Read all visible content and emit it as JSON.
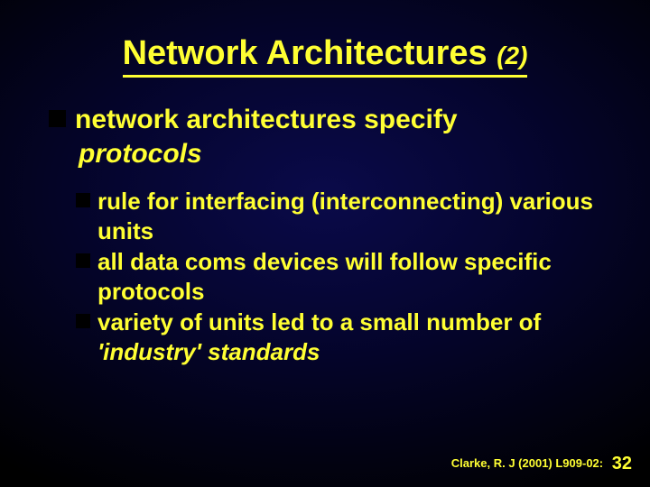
{
  "colors": {
    "text": "#ffff33",
    "bullet": "#000000",
    "bg_center": "#0a0a4a",
    "bg_outer": "#000000"
  },
  "typography": {
    "family": "Arial",
    "title_main_size": 38,
    "title_suffix_size": 28,
    "l1_size": 30,
    "l2_size": 26,
    "footer_size": 13,
    "pagenum_size": 20,
    "weight": "bold"
  },
  "title": {
    "main": "Network Architectures ",
    "suffix": "(2)"
  },
  "l1": {
    "line1": "network architectures specify",
    "line2_italic": "protocols"
  },
  "l2": {
    "items": [
      {
        "plain": "rule for interfacing (interconnecting) various units",
        "italic": ""
      },
      {
        "plain": "all data coms devices will follow specific protocols",
        "italic": ""
      },
      {
        "plain": "variety of units led to a small number of ",
        "italic": "'industry' standards"
      }
    ]
  },
  "footer": {
    "citation": "Clarke, R. J (2001) L909-02:",
    "page": "32"
  }
}
